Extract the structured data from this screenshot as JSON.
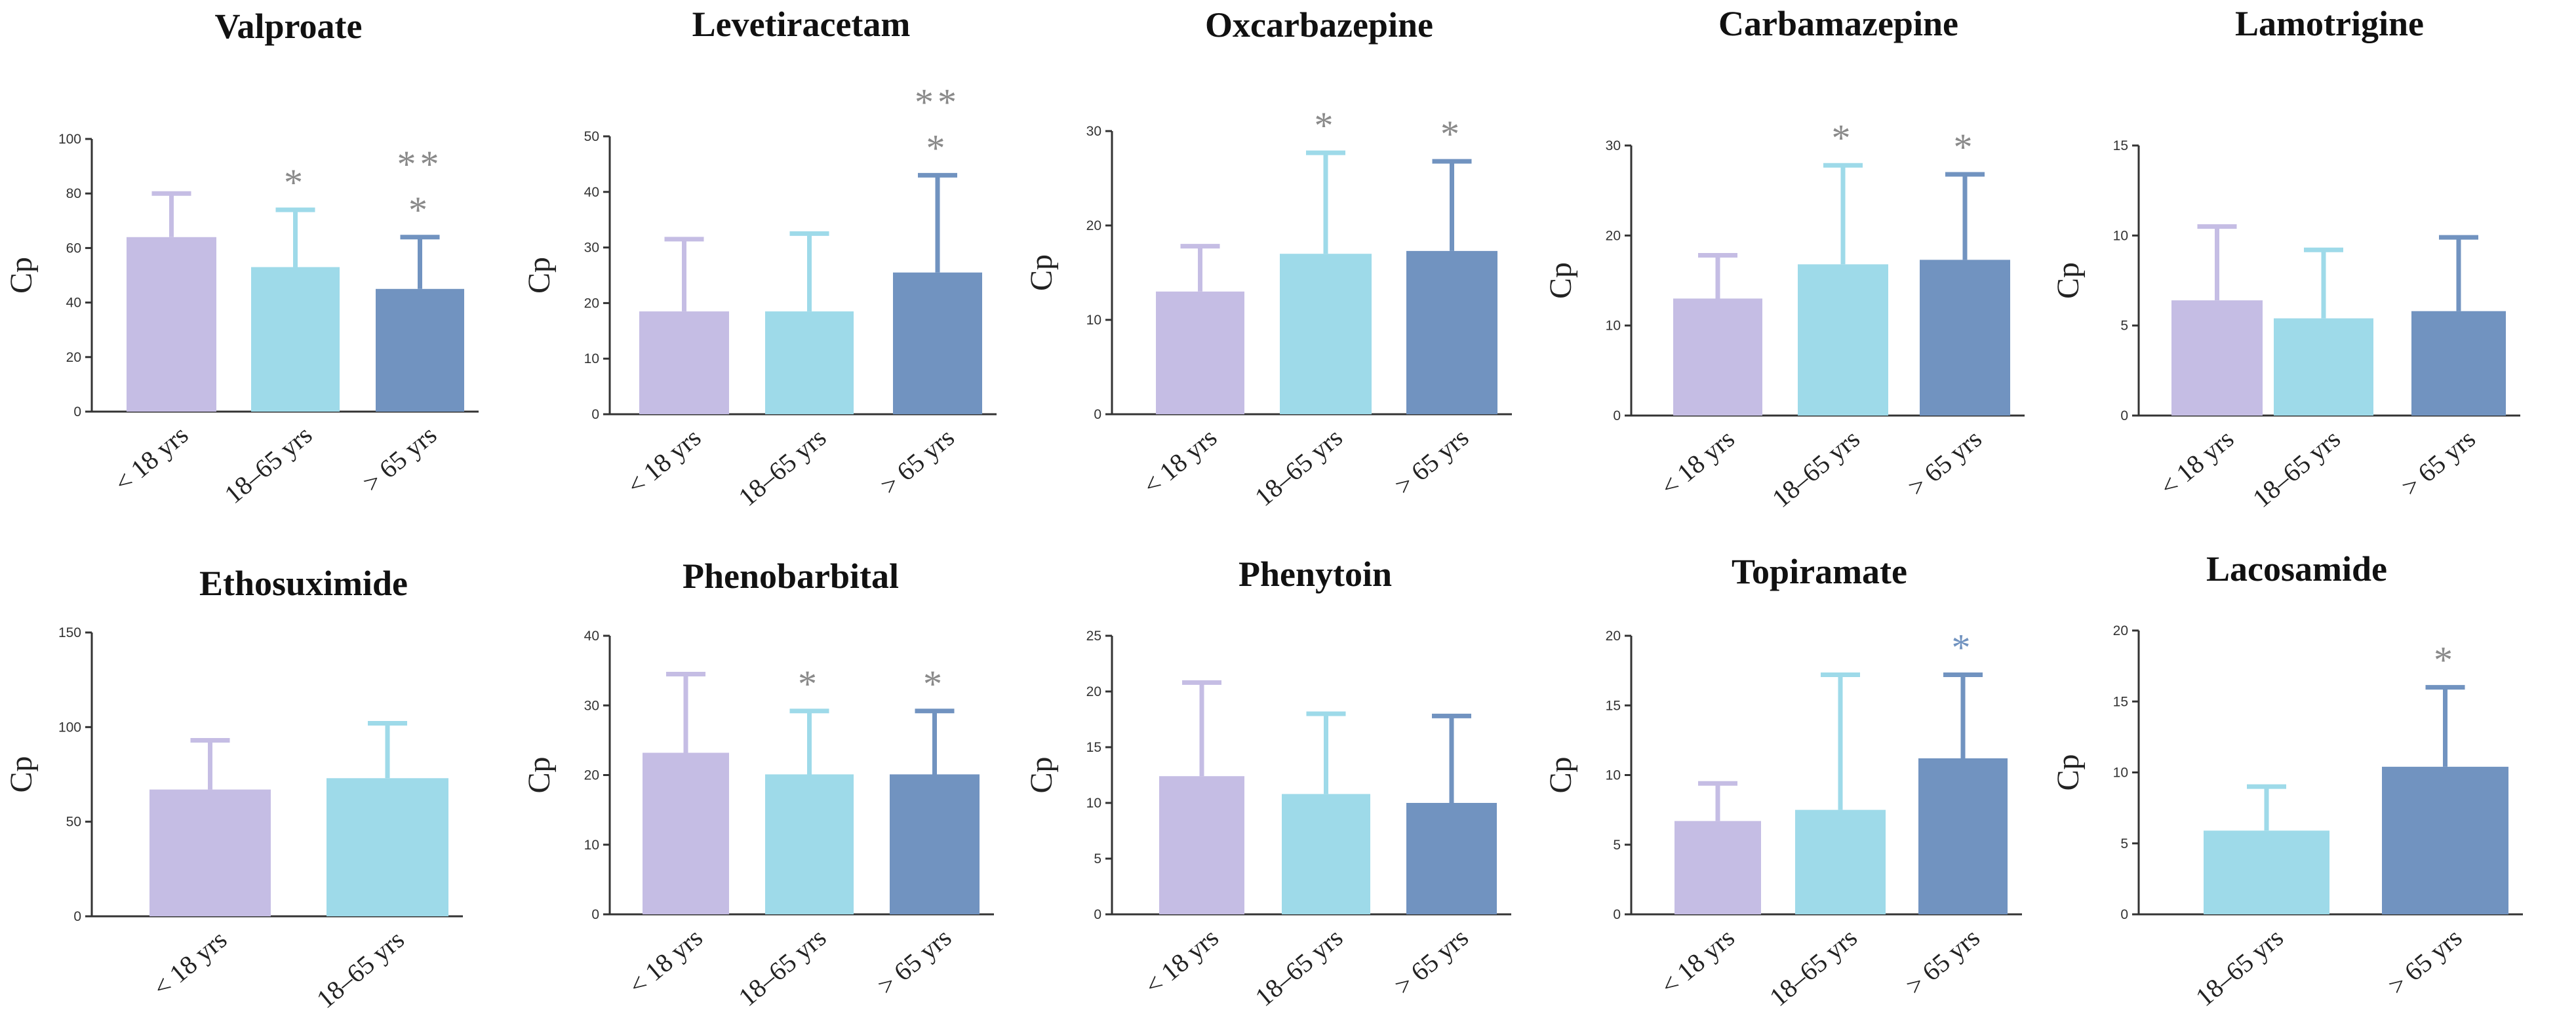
{
  "colors": {
    "lt18": "#c5bde4",
    "mid": "#9edae9",
    "gt65": "#7193c0",
    "axis": "#333333",
    "star": "#8a8a8a",
    "star_blue": "#7193c0"
  },
  "chart_data": [
    {
      "type": "bar",
      "title": "Valproate",
      "ylabel": "Cp",
      "ylim": [
        0,
        100
      ],
      "yticks": [
        "0",
        "20",
        "40",
        "60",
        "80",
        "100"
      ],
      "categories": [
        "< 18 yrs",
        "18–65 yrs",
        "> 65 yrs"
      ],
      "groups": [
        "lt18",
        "mid",
        "gt65"
      ],
      "values": [
        64,
        53,
        45
      ],
      "errors": [
        16,
        21,
        19
      ],
      "annotations": [
        {
          "index": 1,
          "lines": [
            "*"
          ],
          "color": "star"
        },
        {
          "index": 2,
          "lines": [
            "**",
            "*"
          ],
          "color": "star"
        }
      ]
    },
    {
      "type": "bar",
      "title": "Levetiracetam",
      "ylabel": "Cp",
      "ylim": [
        0,
        50
      ],
      "yticks": [
        "0",
        "10",
        "20",
        "30",
        "40",
        "50"
      ],
      "categories": [
        "< 18 yrs",
        "18–65 yrs",
        "> 65 yrs"
      ],
      "groups": [
        "lt18",
        "mid",
        "gt65"
      ],
      "values": [
        18.5,
        18.5,
        25.5
      ],
      "errors": [
        13,
        14,
        17.5
      ],
      "annotations": [
        {
          "index": 2,
          "lines": [
            "**",
            "*"
          ],
          "color": "star"
        }
      ]
    },
    {
      "type": "bar",
      "title": "Oxcarbazepine",
      "ylabel": "Cp",
      "ylim": [
        0,
        30
      ],
      "yticks": [
        "0",
        "10",
        "20",
        "30"
      ],
      "categories": [
        "< 18 yrs",
        "18–65 yrs",
        "> 65 yrs"
      ],
      "groups": [
        "lt18",
        "mid",
        "gt65"
      ],
      "values": [
        13,
        17,
        17.3
      ],
      "errors": [
        4.8,
        10.7,
        9.5
      ],
      "annotations": [
        {
          "index": 1,
          "lines": [
            "*"
          ],
          "color": "star"
        },
        {
          "index": 2,
          "lines": [
            "*"
          ],
          "color": "star"
        }
      ]
    },
    {
      "type": "bar",
      "title": "Carbamazepine",
      "ylabel": "Cp",
      "ylim": [
        0,
        30
      ],
      "yticks": [
        "0",
        "10",
        "20",
        "30"
      ],
      "categories": [
        "< 18 yrs",
        "18–65 yrs",
        "> 65 yrs"
      ],
      "groups": [
        "lt18",
        "mid",
        "gt65"
      ],
      "values": [
        13,
        16.8,
        17.3
      ],
      "errors": [
        4.8,
        11,
        9.5
      ],
      "annotations": [
        {
          "index": 1,
          "lines": [
            "*"
          ],
          "color": "star"
        },
        {
          "index": 2,
          "lines": [
            "*"
          ],
          "color": "star"
        }
      ]
    },
    {
      "type": "bar",
      "title": "Lamotrigine",
      "ylabel": "Cp",
      "ylim": [
        0,
        15
      ],
      "yticks": [
        "0",
        "5",
        "10",
        "15"
      ],
      "categories": [
        "< 18 yrs",
        "18–65 yrs",
        "> 65 yrs"
      ],
      "groups": [
        "lt18",
        "mid",
        "gt65"
      ],
      "values": [
        6.4,
        5.4,
        5.8
      ],
      "errors": [
        4.1,
        3.8,
        4.1
      ],
      "annotations": []
    },
    {
      "type": "bar",
      "title": "Ethosuximide",
      "ylabel": "Cp",
      "ylim": [
        0,
        150
      ],
      "yticks": [
        "0",
        "50",
        "100",
        "150"
      ],
      "categories": [
        "< 18 yrs",
        "18–65 yrs"
      ],
      "groups": [
        "lt18",
        "mid"
      ],
      "values": [
        67,
        73
      ],
      "errors": [
        26,
        29
      ],
      "annotations": []
    },
    {
      "type": "bar",
      "title": "Phenobarbital",
      "ylabel": "Cp",
      "ylim": [
        0,
        40
      ],
      "yticks": [
        "0",
        "10",
        "20",
        "30",
        "40"
      ],
      "categories": [
        "< 18 yrs",
        "18–65 yrs",
        "> 65 yrs"
      ],
      "groups": [
        "lt18",
        "mid",
        "gt65"
      ],
      "values": [
        23.2,
        20.1,
        20.1
      ],
      "errors": [
        11.3,
        9.1,
        9.1
      ],
      "annotations": [
        {
          "index": 1,
          "lines": [
            "*"
          ],
          "color": "star"
        },
        {
          "index": 2,
          "lines": [
            "*"
          ],
          "color": "star"
        }
      ]
    },
    {
      "type": "bar",
      "title": "Phenytoin",
      "ylabel": "Cp",
      "ylim": [
        0,
        25
      ],
      "yticks": [
        "0",
        "5",
        "10",
        "15",
        "20",
        "25"
      ],
      "categories": [
        "< 18 yrs",
        "18–65 yrs",
        "> 65 yrs"
      ],
      "groups": [
        "lt18",
        "mid",
        "gt65"
      ],
      "values": [
        12.4,
        10.8,
        10
      ],
      "errors": [
        8.4,
        7.2,
        7.8
      ],
      "annotations": []
    },
    {
      "type": "bar",
      "title": "Topiramate",
      "ylabel": "Cp",
      "ylim": [
        0,
        20
      ],
      "yticks": [
        "0",
        "5",
        "10",
        "15",
        "20"
      ],
      "categories": [
        "< 18 yrs",
        "18–65 yrs",
        "> 65 yrs"
      ],
      "groups": [
        "lt18",
        "mid",
        "gt65"
      ],
      "values": [
        6.7,
        7.5,
        11.2
      ],
      "errors": [
        2.7,
        9.7,
        6
      ],
      "annotations": [
        {
          "index": 2,
          "lines": [
            "*"
          ],
          "color": "star_blue"
        }
      ]
    },
    {
      "type": "bar",
      "title": "Lacosamide",
      "ylabel": "Cp",
      "ylim": [
        0,
        20
      ],
      "yticks": [
        "0",
        "5",
        "10",
        "15",
        "20"
      ],
      "categories": [
        "18–65 yrs",
        "> 65 yrs"
      ],
      "groups": [
        "mid",
        "gt65"
      ],
      "values": [
        5.9,
        10.4
      ],
      "errors": [
        3.1,
        5.6
      ],
      "annotations": [
        {
          "index": 1,
          "lines": [
            "*"
          ],
          "color": "star"
        }
      ]
    }
  ]
}
